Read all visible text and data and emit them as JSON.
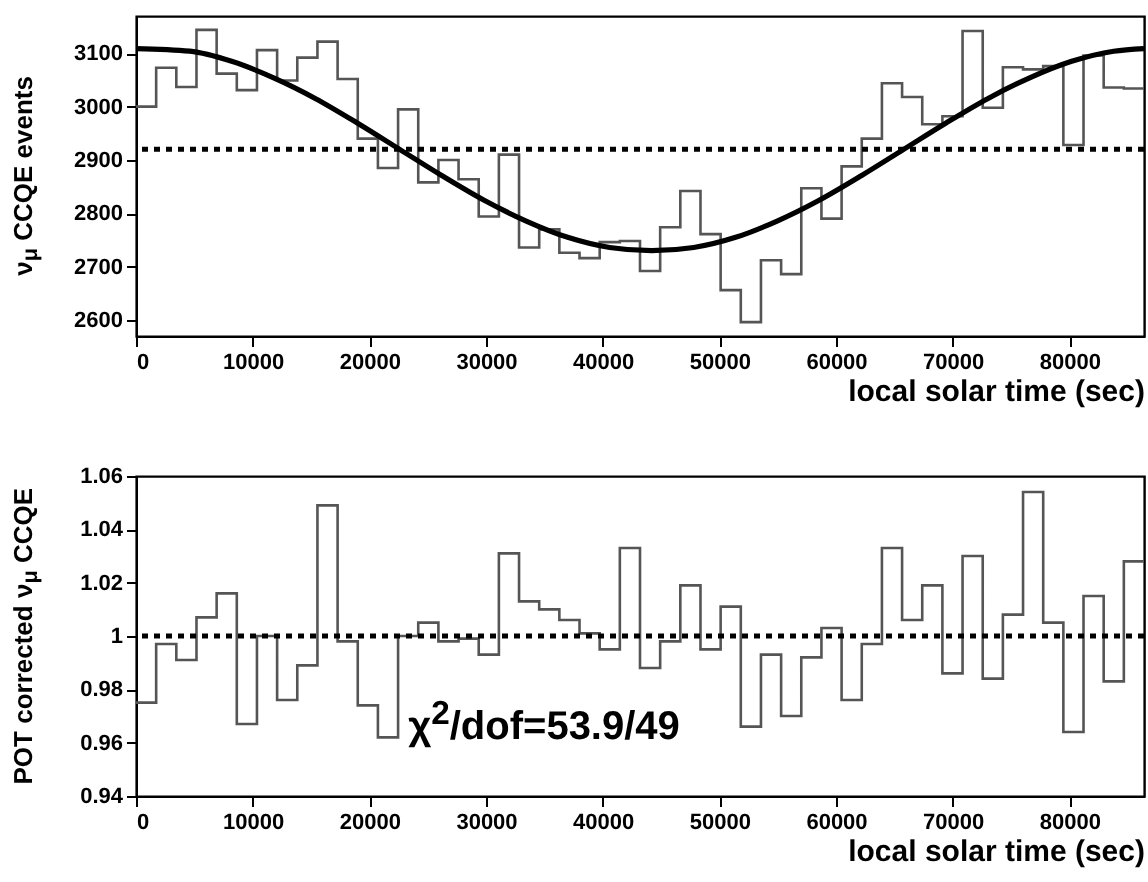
{
  "chart_data": [
    {
      "type": "histogram",
      "xlabel": "local solar time (sec)",
      "ylabel": "ν$_{μ}$ CCQE events",
      "bins": [
        0,
        1728,
        3456,
        5184,
        6912,
        8640,
        10368,
        12096,
        13824,
        15552,
        17280,
        19008,
        20736,
        22464,
        24192,
        25920,
        27648,
        29376,
        31104,
        32832,
        34560,
        36288,
        38016,
        39744,
        41472,
        43200,
        44928,
        46656,
        48384,
        50112,
        51840,
        53568,
        55296,
        57024,
        58752,
        60480,
        62208,
        63936,
        65664,
        67392,
        69120,
        70848,
        72576,
        74304,
        76032,
        77760,
        79488,
        81216,
        82944,
        84672,
        86400
      ],
      "series": [
        {
          "type": "histogram",
          "color": "#555555",
          "values": [
            3000,
            3073,
            3037,
            3144,
            3062,
            3031,
            3106,
            3049,
            3092,
            3122,
            3052,
            2940,
            2885,
            2995,
            2858,
            2900,
            2864,
            2794,
            2910,
            2736,
            2770,
            2726,
            2716,
            2746,
            2748,
            2692,
            2774,
            2842,
            2761,
            2656,
            2596,
            2712,
            2686,
            2847,
            2790,
            2888,
            2940,
            3044,
            3018,
            2967,
            2982,
            3142,
            2998,
            3074,
            3070,
            3076,
            2928,
            3096,
            3036,
            3034
          ]
        },
        {
          "type": "line",
          "color": "#000000",
          "x": [
            0,
            4600,
            8200,
            11800,
            15400,
            19000,
            22600,
            26200,
            29800,
            33400,
            37000,
            40600,
            44200,
            47800,
            51400,
            55000,
            58600,
            62200,
            65800,
            69400,
            73000,
            76600,
            80200,
            83800,
            86400
          ],
          "values": [
            3109,
            3104,
            3085,
            3054,
            3015,
            2969,
            2920,
            2871,
            2825,
            2786,
            2755,
            2736,
            2730,
            2736,
            2755,
            2786,
            2825,
            2871,
            2920,
            2969,
            3015,
            3054,
            3085,
            3104,
            3109
          ]
        }
      ],
      "xlim": [
        0,
        86400
      ],
      "xticks": [
        0,
        10000,
        20000,
        30000,
        40000,
        50000,
        60000,
        70000,
        80000
      ],
      "ylim": [
        2570,
        3170
      ],
      "yticks": [
        2600,
        2700,
        2800,
        2900,
        3000,
        3100
      ],
      "ref_lines": [
        {
          "axis": "y",
          "value": 2920,
          "line_style": "dotted",
          "color": "#000000"
        }
      ]
    },
    {
      "type": "histogram",
      "xlabel": "local solar time (sec)",
      "ylabel": "POT corrected ν$_{μ}$ CCQE",
      "bins": [
        0,
        1728,
        3456,
        5184,
        6912,
        8640,
        10368,
        12096,
        13824,
        15552,
        17280,
        19008,
        20736,
        22464,
        24192,
        25920,
        27648,
        29376,
        31104,
        32832,
        34560,
        36288,
        38016,
        39744,
        41472,
        43200,
        44928,
        46656,
        48384,
        50112,
        51840,
        53568,
        55296,
        57024,
        58752,
        60480,
        62208,
        63936,
        65664,
        67392,
        69120,
        70848,
        72576,
        74304,
        76032,
        77760,
        79488,
        81216,
        82944,
        84672,
        86400
      ],
      "series": [
        {
          "type": "histogram",
          "color": "#555555",
          "values": [
            0.975,
            0.997,
            0.991,
            1.007,
            1.016,
            0.967,
            1.0,
            0.976,
            0.989,
            1.049,
            0.998,
            0.974,
            0.962,
            1.0,
            1.005,
            0.998,
            0.999,
            0.993,
            1.031,
            1.013,
            1.01,
            1.006,
            1.001,
            0.995,
            1.033,
            0.988,
            0.998,
            1.019,
            0.995,
            1.011,
            0.966,
            0.993,
            0.97,
            0.992,
            1.003,
            0.976,
            0.997,
            1.033,
            1.006,
            1.019,
            0.986,
            1.03,
            0.984,
            1.008,
            1.054,
            1.005,
            0.964,
            1.015,
            0.983,
            1.028
          ]
        }
      ],
      "xlim": [
        0,
        86400
      ],
      "xticks": [
        0,
        10000,
        20000,
        30000,
        40000,
        50000,
        60000,
        70000,
        80000
      ],
      "ylim": [
        0.94,
        1.06
      ],
      "yticks": [
        0.94,
        0.96,
        0.98,
        1,
        1.02,
        1.04,
        1.06
      ],
      "ref_lines": [
        {
          "axis": "y",
          "value": 1,
          "line_style": "dotted",
          "color": "#000000"
        }
      ],
      "annotations": [
        "χ$^{2}$/dof=53.9/49"
      ]
    }
  ]
}
